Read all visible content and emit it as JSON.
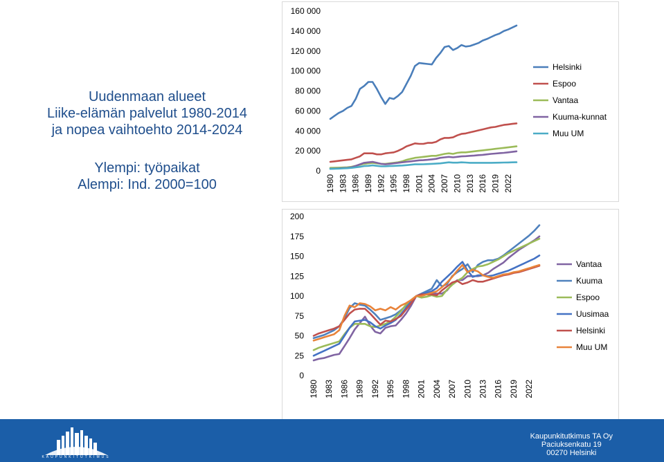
{
  "title_lines": [
    "Uudenmaan alueet",
    "Liike-elämän palvelut 1980-2014",
    "ja nopea vaihtoehto 2014-2024"
  ],
  "subtitle_lines": [
    "Ylempi: työpaikat",
    "Alempi: Ind. 2000=100"
  ],
  "footer": {
    "lines": [
      "Kaupunkitutkimus TA Oy",
      "Paciuksenkatu 19",
      "00270 Helsinki"
    ],
    "logo_text": "KAUPUNKITUTKIMUS"
  },
  "chart_data": [
    {
      "type": "line",
      "title": "",
      "xlabel": "",
      "ylabel": "",
      "x": [
        1980,
        1981,
        1982,
        1983,
        1984,
        1985,
        1986,
        1987,
        1988,
        1989,
        1990,
        1991,
        1992,
        1993,
        1994,
        1995,
        1996,
        1997,
        1998,
        1999,
        2000,
        2001,
        2002,
        2003,
        2004,
        2005,
        2006,
        2007,
        2008,
        2009,
        2010,
        2011,
        2012,
        2013,
        2014,
        2015,
        2016,
        2017,
        2018,
        2019,
        2020,
        2021,
        2022,
        2023,
        2024
      ],
      "x_tick_labels": [
        "1980",
        "1983",
        "1986",
        "1989",
        "1992",
        "1995",
        "1998",
        "2001",
        "2004",
        "2007",
        "2010",
        "2013",
        "2016",
        "2019",
        "2022"
      ],
      "ylim": [
        0,
        160000
      ],
      "y_ticks": [
        0,
        20000,
        40000,
        60000,
        80000,
        100000,
        120000,
        140000,
        160000
      ],
      "y_tick_labels": [
        "0",
        "20 000",
        "40 000",
        "60 000",
        "80 000",
        "100 000",
        "120 000",
        "140 000",
        "160 000"
      ],
      "grid": false,
      "legend_position": "right",
      "series": [
        {
          "name": "Helsinki",
          "color": "#4a7eba",
          "values": [
            52000,
            55000,
            58000,
            60000,
            63000,
            65000,
            72000,
            82000,
            85000,
            89000,
            89000,
            82000,
            74000,
            67000,
            73000,
            72000,
            75000,
            79000,
            87000,
            95000,
            105000,
            108000,
            107500,
            107000,
            106500,
            113000,
            118000,
            124000,
            125000,
            121000,
            123000,
            126000,
            124500,
            125000,
            126500,
            128000,
            130500,
            132000,
            134000,
            136000,
            137500,
            140000,
            141500,
            143500,
            145500
          ]
        },
        {
          "name": "Espoo",
          "color": "#c0504d",
          "values": [
            9000,
            9500,
            10000,
            10500,
            11000,
            11500,
            13000,
            14500,
            17500,
            17500,
            17500,
            16500,
            16500,
            17500,
            18000,
            18500,
            20000,
            22000,
            24500,
            26000,
            27500,
            27000,
            27000,
            28000,
            28000,
            29000,
            31500,
            33000,
            33000,
            33500,
            35500,
            37000,
            37500,
            38500,
            39500,
            40500,
            41500,
            42500,
            43500,
            44000,
            45000,
            46000,
            46500,
            47000,
            47500
          ]
        },
        {
          "name": "Vantaa",
          "color": "#9bbb59",
          "values": [
            3000,
            3100,
            3200,
            3300,
            3500,
            4000,
            5000,
            6000,
            7000,
            7500,
            8000,
            7500,
            7000,
            7000,
            7500,
            8000,
            8500,
            9500,
            11000,
            12000,
            13000,
            13500,
            14000,
            14500,
            15000,
            15000,
            16000,
            17000,
            17500,
            17000,
            18000,
            18500,
            18500,
            19000,
            19500,
            20000,
            20500,
            21000,
            21500,
            22000,
            22500,
            23000,
            23500,
            24000,
            24500
          ]
        },
        {
          "name": "Kuuma-kunnat",
          "color": "#8064a2",
          "values": [
            2000,
            2200,
            2400,
            2700,
            3000,
            3500,
            5000,
            6500,
            8000,
            8500,
            9000,
            8000,
            7000,
            6500,
            7000,
            7500,
            8000,
            8500,
            9000,
            9500,
            10000,
            10500,
            10700,
            11000,
            11500,
            12000,
            13000,
            13500,
            14000,
            13500,
            14000,
            14500,
            14700,
            15000,
            15300,
            15700,
            16000,
            16500,
            17000,
            17300,
            17700,
            18000,
            18500,
            19000,
            19500
          ]
        },
        {
          "name": "Muu UM",
          "color": "#4bacc6",
          "values": [
            2000,
            2100,
            2200,
            2400,
            2600,
            3000,
            3500,
            4000,
            4800,
            5000,
            5500,
            5000,
            4500,
            4500,
            4800,
            4900,
            5100,
            5300,
            5700,
            6100,
            6500,
            6500,
            6600,
            6800,
            7000,
            7200,
            7500,
            8000,
            8500,
            8200,
            8200,
            8500,
            8300,
            8000,
            8000,
            8000,
            8000,
            8000,
            8000,
            8100,
            8200,
            8300,
            8400,
            8500,
            8600
          ]
        }
      ]
    },
    {
      "type": "line",
      "title": "",
      "xlabel": "",
      "ylabel": "",
      "x": [
        1980,
        1981,
        1982,
        1983,
        1984,
        1985,
        1986,
        1987,
        1988,
        1989,
        1990,
        1991,
        1992,
        1993,
        1994,
        1995,
        1996,
        1997,
        1998,
        1999,
        2000,
        2001,
        2002,
        2003,
        2004,
        2005,
        2006,
        2007,
        2008,
        2009,
        2010,
        2011,
        2012,
        2013,
        2014,
        2015,
        2016,
        2017,
        2018,
        2019,
        2020,
        2021,
        2022,
        2023,
        2024
      ],
      "x_tick_labels": [
        "1980",
        "1983",
        "1986",
        "1989",
        "1992",
        "1995",
        "1998",
        "2001",
        "2004",
        "2007",
        "2010",
        "2013",
        "2016",
        "2019",
        "2022"
      ],
      "ylim": [
        0,
        200
      ],
      "y_ticks": [
        0,
        25,
        50,
        75,
        100,
        125,
        150,
        175,
        200
      ],
      "y_tick_labels": [
        "0",
        "25",
        "50",
        "75",
        "100",
        "125",
        "150",
        "175",
        "200"
      ],
      "grid": false,
      "legend_position": "right",
      "series": [
        {
          "name": "Vantaa",
          "color": "#8064a2",
          "values": [
            19,
            21,
            22,
            24,
            26,
            27,
            37,
            47,
            58,
            66,
            74,
            63,
            55,
            53,
            60,
            62,
            63,
            70,
            78,
            88,
            100,
            101,
            103,
            104,
            103,
            103,
            107,
            115,
            120,
            120,
            125,
            125,
            125,
            126,
            129,
            134,
            138,
            142,
            148,
            153,
            158,
            162,
            166,
            170,
            175
          ]
        },
        {
          "name": "Kuuma",
          "color": "#4f81bd",
          "values": [
            47,
            49,
            51,
            54,
            57,
            62,
            72,
            85,
            91,
            89,
            88,
            83,
            77,
            70,
            72,
            74,
            77,
            82,
            88,
            94,
            100,
            103,
            106,
            109,
            120,
            112,
            115,
            125,
            130,
            134,
            140,
            130,
            139,
            143,
            145,
            145,
            147,
            151,
            156,
            161,
            166,
            171,
            176,
            182,
            189
          ]
        },
        {
          "name": "Espoo",
          "color": "#9bbb59",
          "values": [
            32,
            35,
            37,
            39,
            41,
            43,
            52,
            60,
            65,
            65,
            65,
            62,
            61,
            63,
            65,
            68,
            74,
            81,
            89,
            95,
            100,
            98,
            99,
            101,
            99,
            100,
            108,
            114,
            119,
            123,
            130,
            134,
            137,
            138,
            140,
            143,
            146,
            150,
            154,
            157,
            160,
            163,
            166,
            169,
            172
          ]
        },
        {
          "name": "Uusimaa",
          "color": "#4472c4",
          "values": [
            25,
            28,
            31,
            34,
            37,
            40,
            50,
            60,
            68,
            69,
            70,
            67,
            62,
            59,
            63,
            66,
            70,
            77,
            85,
            93,
            100,
            102,
            104,
            106,
            110,
            118,
            124,
            130,
            137,
            143,
            132,
            124,
            126,
            126,
            125,
            126,
            128,
            130,
            132,
            135,
            138,
            141,
            144,
            147,
            151
          ]
        },
        {
          "name": "Helsinki",
          "color": "#c0504d",
          "values": [
            50,
            53,
            55,
            57,
            59,
            62,
            70,
            78,
            83,
            84,
            84,
            78,
            71,
            64,
            69,
            68,
            71,
            75,
            83,
            91,
            100,
            102,
            102,
            102,
            101,
            107,
            112,
            117,
            119,
            115,
            117,
            120,
            118,
            118,
            120,
            122,
            124,
            126,
            127,
            129,
            130,
            132,
            134,
            136,
            138
          ]
        },
        {
          "name": "Muu UM",
          "color": "#e8833a",
          "values": [
            44,
            46,
            48,
            50,
            52,
            57,
            75,
            88,
            86,
            91,
            90,
            87,
            82,
            84,
            82,
            86,
            83,
            88,
            91,
            95,
            100,
            100,
            102,
            104,
            106,
            111,
            117,
            124,
            132,
            139,
            130,
            133,
            131,
            126,
            124,
            123,
            125,
            127,
            128,
            130,
            131,
            133,
            135,
            137,
            139
          ]
        }
      ]
    }
  ]
}
